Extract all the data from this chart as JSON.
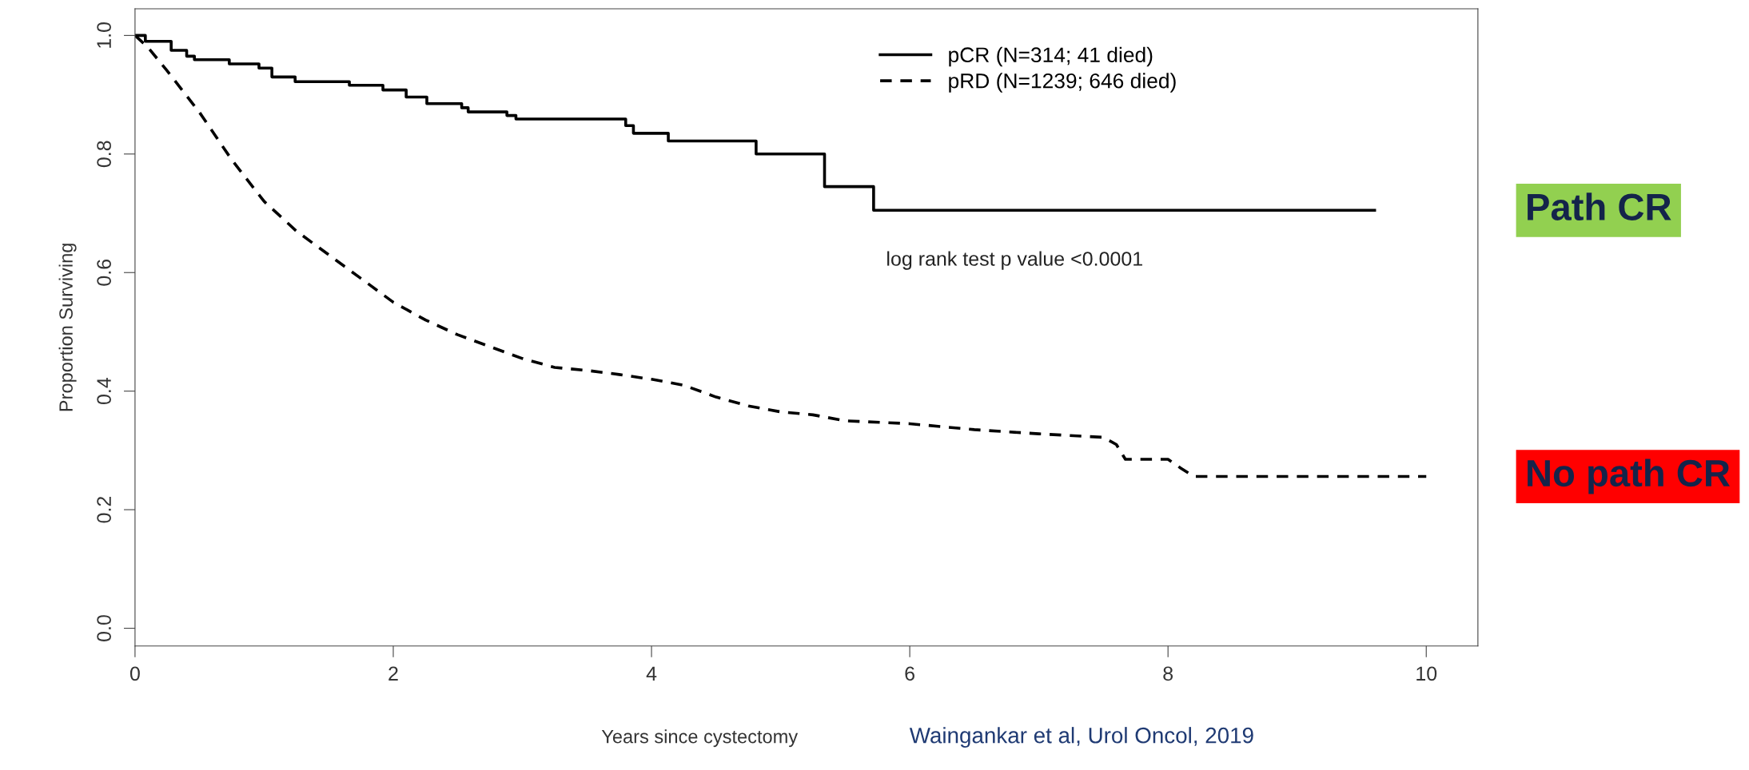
{
  "chart_data": {
    "type": "step",
    "xlabel": "Years since cystectomy",
    "ylabel": "Proportion Surviving",
    "series": [
      {
        "name": "pCR (N=314; 41 died)",
        "color": "#000000",
        "line_style": "solid",
        "x": [
          0,
          0.08,
          0.28,
          0.4,
          0.46,
          0.73,
          0.96,
          1.06,
          1.24,
          1.66,
          1.92,
          2.1,
          2.26,
          2.53,
          2.58,
          2.88,
          2.95,
          3.8,
          3.86,
          4.13,
          4.81,
          5.34,
          5.72,
          9.6
        ],
        "values": [
          1.0,
          0.99,
          0.975,
          0.965,
          0.959,
          0.952,
          0.945,
          0.93,
          0.922,
          0.916,
          0.908,
          0.896,
          0.885,
          0.878,
          0.871,
          0.865,
          0.859,
          0.848,
          0.835,
          0.822,
          0.8,
          0.745,
          0.705,
          0.705
        ]
      },
      {
        "name": "pRD (N=1239; 646 died)",
        "type": "line",
        "color": "#000000",
        "line_style": "dashed",
        "x": [
          0,
          0.1,
          0.25,
          0.5,
          0.75,
          1.0,
          1.25,
          1.5,
          1.75,
          2.0,
          2.25,
          2.5,
          2.75,
          3.0,
          3.25,
          3.5,
          3.75,
          4.0,
          4.25,
          4.5,
          4.75,
          5.0,
          5.25,
          5.5,
          6.0,
          6.5,
          7.0,
          7.5,
          7.6,
          7.67,
          8.0,
          8.1,
          8.2,
          10.0
        ],
        "values": [
          1.0,
          0.98,
          0.94,
          0.87,
          0.79,
          0.72,
          0.67,
          0.63,
          0.59,
          0.55,
          0.52,
          0.495,
          0.475,
          0.455,
          0.44,
          0.435,
          0.428,
          0.42,
          0.41,
          0.39,
          0.375,
          0.365,
          0.36,
          0.35,
          0.345,
          0.335,
          0.328,
          0.322,
          0.31,
          0.285,
          0.285,
          0.27,
          0.256,
          0.256
        ]
      }
    ],
    "xlim": [
      0,
      10.4
    ],
    "xticks": [
      0,
      2,
      4,
      6,
      8,
      10
    ],
    "ylim": [
      -0.03,
      1.045
    ],
    "yticks": [
      {
        "value": 0,
        "label": "0.0"
      },
      {
        "value": 0.2,
        "label": "0.2"
      },
      {
        "value": 0.4,
        "label": "0.4"
      },
      {
        "value": 0.6,
        "label": "0.6"
      },
      {
        "value": 0.8,
        "label": "0.8"
      },
      {
        "value": 1,
        "label": "1.0"
      }
    ],
    "grid": false,
    "legend": "top right",
    "annotations": [
      "log rank test p value <0.0001",
      "Path CR",
      "No path CR",
      "Waingankar et al, Urol Oncol, 2019"
    ]
  }
}
